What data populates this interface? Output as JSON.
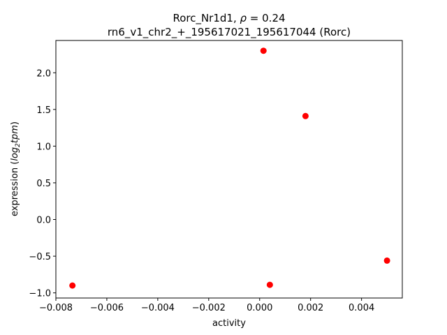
{
  "chart_data": {
    "type": "scatter",
    "title_line1": "Rorc_Nr1d1, ",
    "title_rho_symbol": "ρ",
    "title_rho_value": " = 0.24",
    "title_line2": "rn6_v1_chr2_+_195617021_195617044 (Rorc)",
    "xlabel": "activity",
    "ylabel_prefix": "expression (",
    "ylabel_log": "log",
    "ylabel_sub": "2",
    "ylabel_tpm": "tpm",
    "ylabel_suffix": ")",
    "xlim": [
      -0.008,
      0.0056
    ],
    "ylim": [
      -1.07,
      2.44
    ],
    "xticks": [
      -0.008,
      -0.006,
      -0.004,
      -0.002,
      0.0,
      0.002,
      0.004
    ],
    "xtick_labels": [
      "−0.008",
      "−0.006",
      "−0.004",
      "−0.002",
      "0.000",
      "0.002",
      "0.004"
    ],
    "yticks": [
      -1.0,
      -0.5,
      0.0,
      0.5,
      1.0,
      1.5,
      2.0
    ],
    "ytick_labels": [
      "−1.0",
      "−0.5",
      "0.0",
      "0.5",
      "1.0",
      "1.5",
      "2.0"
    ],
    "marker_color": "#ff0000",
    "grid": false,
    "points": [
      {
        "x": 0.00015,
        "y": 2.3
      },
      {
        "x": 0.0018,
        "y": 1.41
      },
      {
        "x": 0.005,
        "y": -0.56
      },
      {
        "x": -0.00735,
        "y": -0.9
      },
      {
        "x": 0.0004,
        "y": -0.89
      }
    ]
  }
}
